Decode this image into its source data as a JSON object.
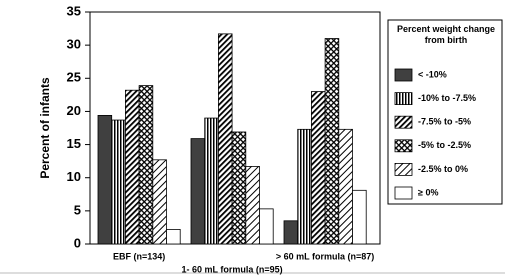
{
  "chart_data": {
    "type": "bar",
    "y_label": "Percent of infants",
    "categories": [
      "EBF (n=134)",
      "1- 60 mL formula (n=95)",
      "> 60 mL formula (n=87)"
    ],
    "legend_title": "Percent weight change from birth",
    "ylim": [
      0,
      35
    ],
    "yticks": [
      0,
      5,
      10,
      15,
      20,
      25,
      30,
      35
    ],
    "series": [
      {
        "name": "< -10%",
        "color": "#000000",
        "pattern": "solid",
        "values": [
          19.4,
          15.9,
          3.5
        ]
      },
      {
        "name": "-10% to -7.5%",
        "color": "#000000",
        "pattern": "vertical",
        "values": [
          18.7,
          19.0,
          17.3
        ]
      },
      {
        "name": "-7.5% to -5%",
        "color": "#000000",
        "pattern": "diagonal",
        "values": [
          23.2,
          31.7,
          23.0
        ]
      },
      {
        "name": "-5% to -2.5%",
        "color": "#000000",
        "pattern": "crosshatch",
        "values": [
          23.9,
          16.9,
          31.0
        ]
      },
      {
        "name": "-2.5% to 0%",
        "color": "#000000",
        "pattern": "diagonal-light",
        "values": [
          12.7,
          11.7,
          17.3
        ]
      },
      {
        "name": "≥ 0%",
        "color": "#000000",
        "pattern": "none",
        "values": [
          2.2,
          5.3,
          8.1
        ]
      }
    ]
  }
}
